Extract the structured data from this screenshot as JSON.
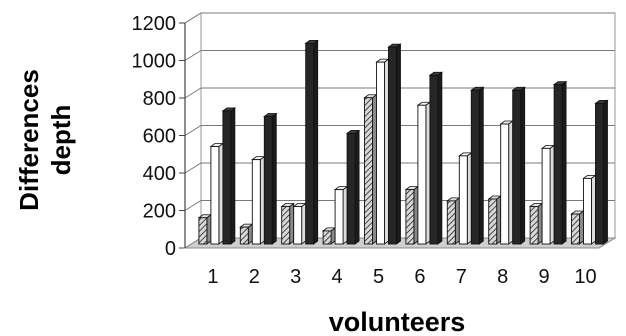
{
  "chart_data": {
    "type": "bar",
    "style": "3d-clustered-column",
    "categories": [
      "1",
      "2",
      "3",
      "4",
      "5",
      "6",
      "7",
      "8",
      "9",
      "10"
    ],
    "series": [
      {
        "values": [
          140,
          90,
          200,
          70,
          780,
          290,
          230,
          240,
          200,
          160
        ],
        "color": "#bdbdbd",
        "pattern": "diagonal-hatch"
      },
      {
        "values": [
          520,
          450,
          200,
          290,
          970,
          740,
          470,
          640,
          510,
          350
        ],
        "color": "#ffffff",
        "pattern": "solid"
      },
      {
        "values": [
          710,
          680,
          1070,
          590,
          1050,
          900,
          820,
          820,
          850,
          750
        ],
        "color": "#262626",
        "pattern": "solid"
      }
    ],
    "yticks": [
      "0",
      "200",
      "400",
      "600",
      "800",
      "1000",
      "1200"
    ],
    "ylim": [
      0,
      1200
    ],
    "ylabel_lines": [
      "Differences",
      "depth"
    ],
    "xlabel": "volunteers",
    "grid": true,
    "legend": "none"
  }
}
